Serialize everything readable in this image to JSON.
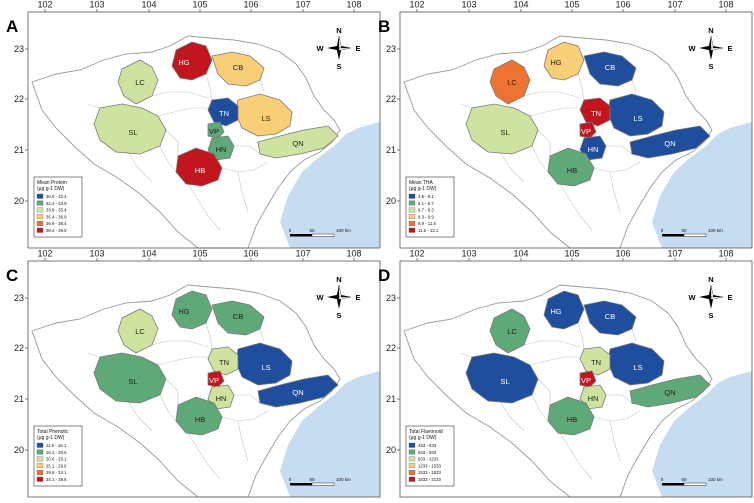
{
  "panels": [
    {
      "id": "A",
      "lon_ticks": [
        "102",
        "103",
        "104",
        "105",
        "106",
        "107",
        "108"
      ],
      "lat_ticks": [
        "23",
        "22",
        "21",
        "20"
      ],
      "compass": {
        "n": "N",
        "s": "S",
        "e": "E",
        "w": "W"
      },
      "legend_title_1": "Mean Protein",
      "legend_title_2": "(µg g-1 DW)",
      "legend_items": [
        "30.6 - 32.4",
        "32.4 - 33.9",
        "33.9 - 35.4",
        "35.4 - 36.9",
        "36.9 - 38.4",
        "38.4 - 39.9"
      ],
      "scale": {
        "zero": "0",
        "mid": "50",
        "end": "100 km"
      },
      "province_classes": {
        "HG": 5,
        "CB": 3,
        "LC": 2,
        "TN": 0,
        "LS": 3,
        "VP": 1,
        "HN": 1,
        "SL": 2,
        "HB": 5,
        "QN": 2
      }
    },
    {
      "id": "B",
      "lon_ticks": [
        "102",
        "103",
        "104",
        "105",
        "106",
        "107",
        "108"
      ],
      "lat_ticks": [
        "23",
        "22",
        "21",
        "20"
      ],
      "compass": {
        "n": "N",
        "s": "S",
        "e": "E",
        "w": "W"
      },
      "legend_title_1": "Mean THA",
      "legend_title_2": "(µg g-1 DW)",
      "legend_items": [
        "3.5 - 5.1",
        "5.1 - 6.7",
        "6.7 - 8.3",
        "8.3 - 9.9",
        "9.9 - 11.5",
        "11.5 - 13.1"
      ],
      "scale": {
        "zero": "0",
        "mid": "50",
        "end": "100 km"
      },
      "province_classes": {
        "HG": 3,
        "CB": 0,
        "LC": 4,
        "TN": 5,
        "LS": 0,
        "VP": 5,
        "HN": 0,
        "SL": 2,
        "HB": 1,
        "QN": 0
      }
    },
    {
      "id": "C",
      "lon_ticks": [
        "102",
        "103",
        "104",
        "105",
        "106",
        "107",
        "108"
      ],
      "lat_ticks": [
        "23",
        "22",
        "21",
        "20"
      ],
      "compass": {
        "n": "N",
        "s": "S",
        "e": "E",
        "w": "W"
      },
      "legend_title_1": "Total Phenolic",
      "legend_title_2": "(µg g-1 DW)",
      "legend_items": [
        "11.6 - 16.1",
        "16.1 - 20.6",
        "20.6 - 25.1",
        "25.1 - 29.6",
        "29.6 - 34.1",
        "34.1 - 38.6"
      ],
      "scale": {
        "zero": "0",
        "mid": "50",
        "end": "100 km"
      },
      "province_classes": {
        "HG": 1,
        "CB": 1,
        "LC": 2,
        "TN": 2,
        "LS": 0,
        "VP": 5,
        "HN": 2,
        "SL": 1,
        "HB": 1,
        "QN": 0
      }
    },
    {
      "id": "D",
      "lon_ticks": [
        "102",
        "103",
        "104",
        "105",
        "106",
        "107",
        "108"
      ],
      "lat_ticks": [
        "23",
        "22",
        "21",
        "20"
      ],
      "compass": {
        "n": "N",
        "s": "S",
        "e": "E",
        "w": "W"
      },
      "legend_title_1": "Total Flavonoid",
      "legend_title_2": "(µg g-1 DW)",
      "legend_items": [
        "333 - 633",
        "633 - 933",
        "933 - 1233",
        "1233 - 1533",
        "1533 - 1833",
        "1833 - 2133"
      ],
      "scale": {
        "zero": "0",
        "mid": "50",
        "end": "100 km"
      },
      "province_classes": {
        "HG": 0,
        "CB": 0,
        "LC": 1,
        "TN": 2,
        "LS": 0,
        "VP": 5,
        "HN": 2,
        "SL": 0,
        "HB": 1,
        "QN": 1
      }
    }
  ],
  "province_labels": [
    "LC",
    "HG",
    "CB",
    "SL",
    "TN",
    "LS",
    "VP",
    "HN",
    "HB",
    "QN"
  ],
  "class_colors": [
    "#1f4e9e",
    "#5fa877",
    "#cfe3a0",
    "#f8cf77",
    "#ee7332",
    "#c1161e"
  ],
  "sea_color": "#c6dcf0",
  "land_color": "#ffffff",
  "outline_color": "#9a9a9a"
}
